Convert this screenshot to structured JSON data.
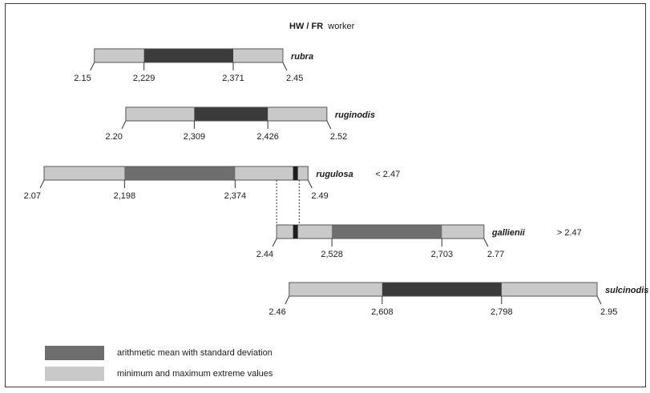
{
  "title": {
    "bold": "HW / FR",
    "rest": "worker"
  },
  "colors": {
    "range": "#c9c9c9",
    "sd": "#6e6e6e",
    "sd_dark": "#3b3b3b",
    "outline": "#555555"
  },
  "chart_data": {
    "type": "bar",
    "title": "HW / FR  worker",
    "xlim": [
      2.07,
      2.95
    ],
    "species": [
      {
        "name": "rubra",
        "min": 2.15,
        "mean_minus_sd": 2.229,
        "mean_plus_sd": 2.371,
        "max": 2.45,
        "labels": [
          "2.15",
          "2,229",
          "2,371",
          "2.45"
        ],
        "sd_shade": "dark",
        "note": ""
      },
      {
        "name": "ruginodis",
        "min": 2.2,
        "mean_minus_sd": 2.309,
        "mean_plus_sd": 2.426,
        "max": 2.52,
        "labels": [
          "2.20",
          "2,309",
          "2,426",
          "2.52"
        ],
        "sd_shade": "dark",
        "note": ""
      },
      {
        "name": "rugulosa",
        "min": 2.07,
        "mean_minus_sd": 2.198,
        "mean_plus_sd": 2.374,
        "max": 2.49,
        "labels": [
          "2.07",
          "2,198",
          "2,374",
          "2.49"
        ],
        "sd_shade": "medium",
        "note": "< 2.47"
      },
      {
        "name": "gallienii",
        "min": 2.44,
        "mean_minus_sd": 2.528,
        "mean_plus_sd": 2.703,
        "max": 2.77,
        "labels": [
          "2.44",
          "2,528",
          "2,703",
          "2.77"
        ],
        "sd_shade": "medium",
        "note": "> 2.47"
      },
      {
        "name": "sulcinodis",
        "min": 2.46,
        "mean_minus_sd": 2.608,
        "mean_plus_sd": 2.798,
        "max": 2.95,
        "labels": [
          "2.46",
          "2,608",
          "2,798",
          "2.95"
        ],
        "sd_shade": "dark",
        "note": ""
      }
    ],
    "overlap": {
      "from": 2.44,
      "to": 2.49,
      "threshold": 2.47
    },
    "legend": [
      {
        "label": "arithmetic mean with standard deviation",
        "role": "sd"
      },
      {
        "label": "minimum and maximum extreme values",
        "role": "range"
      }
    ]
  }
}
